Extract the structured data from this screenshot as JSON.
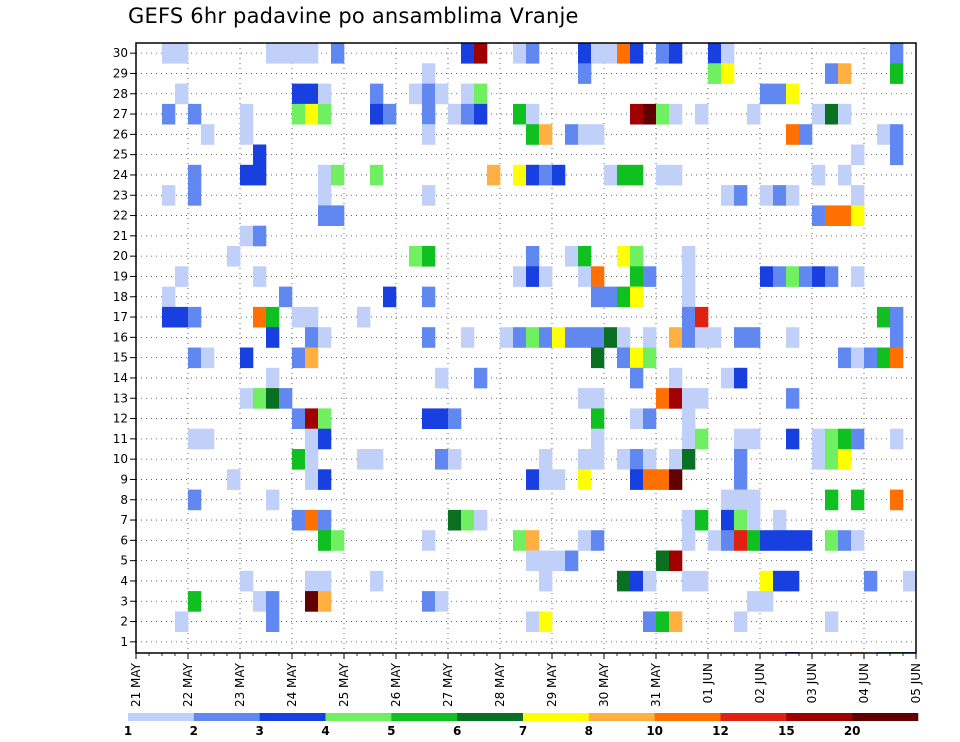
{
  "title": "GEFS 6hr padavine po ansamblima Vranje",
  "chart_data": {
    "type": "heatmap",
    "title": "GEFS 6hr padavine po ansamblima Vranje",
    "y_ticks": [
      "1",
      "2",
      "3",
      "4",
      "5",
      "6",
      "7",
      "8",
      "9",
      "10",
      "11",
      "12",
      "13",
      "14",
      "15",
      "16",
      "17",
      "18",
      "19",
      "20",
      "21",
      "22",
      "23",
      "24",
      "25",
      "26",
      "27",
      "28",
      "29",
      "30"
    ],
    "x_tick_labels": [
      "21 MAY",
      "22 MAY",
      "23 MAY",
      "24 MAY",
      "25 MAY",
      "26 MAY",
      "27 MAY",
      "28 MAY",
      "29 MAY",
      "30 MAY",
      "31 MAY",
      "01 JUN",
      "02 JUN",
      "03 JUN",
      "04 JUN",
      "05 JUN"
    ],
    "x_steps": 60,
    "grid": true,
    "colorbar": {
      "colors": [
        "#c0d0f8",
        "#6088f0",
        "#1840e0",
        "#70f060",
        "#10c020",
        "#087020",
        "#ffff00",
        "#ffb040",
        "#ff7000",
        "#e02010",
        "#a00000",
        "#600000"
      ],
      "labels": [
        "1",
        "2",
        "3",
        "4",
        "5",
        "6",
        "7",
        "8",
        "10",
        "12",
        "15",
        "20"
      ]
    },
    "cells": [
      [
        30,
        3,
        1
      ],
      [
        30,
        4,
        1
      ],
      [
        30,
        11,
        1
      ],
      [
        30,
        12,
        1
      ],
      [
        30,
        13,
        1
      ],
      [
        30,
        14,
        1
      ],
      [
        30,
        16,
        2
      ],
      [
        30,
        26,
        3
      ],
      [
        30,
        27,
        11
      ],
      [
        30,
        30,
        1
      ],
      [
        30,
        31,
        2
      ],
      [
        30,
        35,
        3
      ],
      [
        30,
        36,
        1
      ],
      [
        30,
        37,
        1
      ],
      [
        30,
        38,
        9
      ],
      [
        30,
        39,
        3
      ],
      [
        30,
        41,
        2
      ],
      [
        30,
        42,
        3
      ],
      [
        30,
        45,
        3
      ],
      [
        30,
        46,
        1
      ],
      [
        30,
        59,
        2
      ],
      [
        29,
        23,
        1
      ],
      [
        29,
        35,
        2
      ],
      [
        29,
        45,
        4
      ],
      [
        29,
        46,
        7
      ],
      [
        29,
        54,
        2
      ],
      [
        29,
        55,
        8
      ],
      [
        29,
        59,
        5
      ],
      [
        28,
        4,
        1
      ],
      [
        28,
        13,
        3
      ],
      [
        28,
        14,
        3
      ],
      [
        28,
        15,
        1
      ],
      [
        28,
        19,
        2
      ],
      [
        28,
        22,
        1
      ],
      [
        28,
        23,
        2
      ],
      [
        28,
        24,
        1
      ],
      [
        28,
        26,
        1
      ],
      [
        28,
        27,
        4
      ],
      [
        28,
        49,
        2
      ],
      [
        28,
        50,
        2
      ],
      [
        28,
        51,
        7
      ],
      [
        27,
        3,
        2
      ],
      [
        27,
        5,
        2
      ],
      [
        27,
        9,
        1
      ],
      [
        27,
        13,
        4
      ],
      [
        27,
        14,
        7
      ],
      [
        27,
        15,
        4
      ],
      [
        27,
        19,
        3
      ],
      [
        27,
        20,
        2
      ],
      [
        27,
        23,
        2
      ],
      [
        27,
        25,
        1
      ],
      [
        27,
        26,
        2
      ],
      [
        27,
        27,
        3
      ],
      [
        27,
        30,
        5
      ],
      [
        27,
        31,
        1
      ],
      [
        27,
        39,
        11
      ],
      [
        27,
        40,
        12
      ],
      [
        27,
        41,
        4
      ],
      [
        27,
        42,
        1
      ],
      [
        27,
        44,
        1
      ],
      [
        27,
        48,
        1
      ],
      [
        27,
        53,
        1
      ],
      [
        27,
        54,
        6
      ],
      [
        27,
        55,
        1
      ],
      [
        26,
        6,
        1
      ],
      [
        26,
        9,
        1
      ],
      [
        26,
        23,
        1
      ],
      [
        26,
        31,
        5
      ],
      [
        26,
        32,
        8
      ],
      [
        26,
        34,
        2
      ],
      [
        26,
        35,
        1
      ],
      [
        26,
        36,
        1
      ],
      [
        26,
        51,
        9
      ],
      [
        26,
        52,
        2
      ],
      [
        26,
        58,
        1
      ],
      [
        26,
        59,
        2
      ],
      [
        25,
        10,
        3
      ],
      [
        25,
        56,
        1
      ],
      [
        25,
        59,
        2
      ],
      [
        24,
        5,
        2
      ],
      [
        24,
        9,
        3
      ],
      [
        24,
        10,
        3
      ],
      [
        24,
        15,
        1
      ],
      [
        24,
        16,
        4
      ],
      [
        24,
        19,
        4
      ],
      [
        24,
        28,
        8
      ],
      [
        24,
        30,
        7
      ],
      [
        24,
        31,
        3
      ],
      [
        24,
        32,
        2
      ],
      [
        24,
        33,
        3
      ],
      [
        24,
        37,
        1
      ],
      [
        24,
        38,
        5
      ],
      [
        24,
        39,
        5
      ],
      [
        24,
        41,
        1
      ],
      [
        24,
        42,
        1
      ],
      [
        24,
        53,
        1
      ],
      [
        24,
        55,
        1
      ],
      [
        23,
        3,
        1
      ],
      [
        23,
        5,
        2
      ],
      [
        23,
        15,
        1
      ],
      [
        23,
        23,
        1
      ],
      [
        23,
        46,
        1
      ],
      [
        23,
        47,
        2
      ],
      [
        23,
        49,
        1
      ],
      [
        23,
        50,
        2
      ],
      [
        23,
        51,
        1
      ],
      [
        23,
        56,
        1
      ],
      [
        22,
        15,
        2
      ],
      [
        22,
        16,
        2
      ],
      [
        22,
        53,
        2
      ],
      [
        22,
        54,
        9
      ],
      [
        22,
        55,
        9
      ],
      [
        22,
        56,
        7
      ],
      [
        21,
        9,
        1
      ],
      [
        21,
        10,
        2
      ],
      [
        20,
        8,
        1
      ],
      [
        20,
        22,
        4
      ],
      [
        20,
        23,
        5
      ],
      [
        20,
        31,
        2
      ],
      [
        20,
        34,
        1
      ],
      [
        20,
        35,
        5
      ],
      [
        20,
        38,
        7
      ],
      [
        20,
        39,
        4
      ],
      [
        20,
        43,
        1
      ],
      [
        19,
        4,
        1
      ],
      [
        19,
        10,
        1
      ],
      [
        19,
        30,
        1
      ],
      [
        19,
        31,
        3
      ],
      [
        19,
        32,
        1
      ],
      [
        19,
        35,
        1
      ],
      [
        19,
        36,
        9
      ],
      [
        19,
        39,
        5
      ],
      [
        19,
        40,
        2
      ],
      [
        19,
        43,
        1
      ],
      [
        19,
        49,
        3
      ],
      [
        19,
        50,
        2
      ],
      [
        19,
        51,
        4
      ],
      [
        19,
        52,
        2
      ],
      [
        19,
        53,
        3
      ],
      [
        19,
        54,
        2
      ],
      [
        19,
        56,
        1
      ],
      [
        18,
        3,
        1
      ],
      [
        18,
        12,
        2
      ],
      [
        18,
        20,
        3
      ],
      [
        18,
        23,
        2
      ],
      [
        18,
        36,
        2
      ],
      [
        18,
        37,
        2
      ],
      [
        18,
        38,
        5
      ],
      [
        18,
        39,
        7
      ],
      [
        18,
        43,
        1
      ],
      [
        17,
        3,
        3
      ],
      [
        17,
        4,
        3
      ],
      [
        17,
        5,
        2
      ],
      [
        17,
        10,
        9
      ],
      [
        17,
        11,
        5
      ],
      [
        17,
        13,
        1
      ],
      [
        17,
        14,
        1
      ],
      [
        17,
        18,
        1
      ],
      [
        17,
        43,
        2
      ],
      [
        17,
        44,
        10
      ],
      [
        17,
        58,
        5
      ],
      [
        17,
        59,
        2
      ],
      [
        16,
        11,
        3
      ],
      [
        16,
        14,
        2
      ],
      [
        16,
        15,
        1
      ],
      [
        16,
        23,
        2
      ],
      [
        16,
        26,
        1
      ],
      [
        16,
        29,
        1
      ],
      [
        16,
        30,
        2
      ],
      [
        16,
        31,
        4
      ],
      [
        16,
        32,
        2
      ],
      [
        16,
        33,
        7
      ],
      [
        16,
        34,
        2
      ],
      [
        16,
        35,
        2
      ],
      [
        16,
        36,
        2
      ],
      [
        16,
        37,
        6
      ],
      [
        16,
        38,
        1
      ],
      [
        16,
        40,
        1
      ],
      [
        16,
        42,
        8
      ],
      [
        16,
        43,
        2
      ],
      [
        16,
        44,
        1
      ],
      [
        16,
        45,
        1
      ],
      [
        16,
        47,
        2
      ],
      [
        16,
        48,
        2
      ],
      [
        16,
        51,
        1
      ],
      [
        16,
        59,
        2
      ],
      [
        15,
        5,
        2
      ],
      [
        15,
        6,
        1
      ],
      [
        15,
        9,
        3
      ],
      [
        15,
        13,
        2
      ],
      [
        15,
        14,
        8
      ],
      [
        15,
        36,
        6
      ],
      [
        15,
        38,
        2
      ],
      [
        15,
        39,
        7
      ],
      [
        15,
        40,
        4
      ],
      [
        15,
        55,
        2
      ],
      [
        15,
        56,
        1
      ],
      [
        15,
        57,
        2
      ],
      [
        15,
        58,
        5
      ],
      [
        15,
        59,
        9
      ],
      [
        14,
        11,
        1
      ],
      [
        14,
        24,
        1
      ],
      [
        14,
        27,
        2
      ],
      [
        14,
        39,
        2
      ],
      [
        14,
        42,
        1
      ],
      [
        14,
        46,
        1
      ],
      [
        14,
        47,
        3
      ],
      [
        13,
        9,
        1
      ],
      [
        13,
        10,
        4
      ],
      [
        13,
        11,
        6
      ],
      [
        13,
        12,
        2
      ],
      [
        13,
        35,
        1
      ],
      [
        13,
        36,
        1
      ],
      [
        13,
        41,
        9
      ],
      [
        13,
        42,
        11
      ],
      [
        13,
        43,
        1
      ],
      [
        13,
        44,
        1
      ],
      [
        13,
        51,
        2
      ],
      [
        12,
        13,
        2
      ],
      [
        12,
        14,
        11
      ],
      [
        12,
        15,
        4
      ],
      [
        12,
        23,
        3
      ],
      [
        12,
        24,
        3
      ],
      [
        12,
        25,
        2
      ],
      [
        12,
        36,
        5
      ],
      [
        12,
        39,
        1
      ],
      [
        12,
        40,
        2
      ],
      [
        12,
        43,
        1
      ],
      [
        11,
        5,
        1
      ],
      [
        11,
        6,
        1
      ],
      [
        11,
        14,
        1
      ],
      [
        11,
        15,
        3
      ],
      [
        11,
        36,
        1
      ],
      [
        11,
        43,
        1
      ],
      [
        11,
        44,
        4
      ],
      [
        11,
        47,
        1
      ],
      [
        11,
        48,
        1
      ],
      [
        11,
        51,
        3
      ],
      [
        11,
        53,
        1
      ],
      [
        11,
        54,
        4
      ],
      [
        11,
        55,
        5
      ],
      [
        11,
        56,
        2
      ],
      [
        11,
        59,
        1
      ],
      [
        10,
        13,
        5
      ],
      [
        10,
        14,
        1
      ],
      [
        10,
        18,
        1
      ],
      [
        10,
        19,
        1
      ],
      [
        10,
        24,
        2
      ],
      [
        10,
        25,
        1
      ],
      [
        10,
        32,
        1
      ],
      [
        10,
        35,
        1
      ],
      [
        10,
        36,
        1
      ],
      [
        10,
        38,
        1
      ],
      [
        10,
        39,
        2
      ],
      [
        10,
        40,
        1
      ],
      [
        10,
        42,
        1
      ],
      [
        10,
        43,
        6
      ],
      [
        10,
        47,
        2
      ],
      [
        10,
        53,
        1
      ],
      [
        10,
        54,
        4
      ],
      [
        10,
        55,
        7
      ],
      [
        9,
        8,
        1
      ],
      [
        9,
        14,
        1
      ],
      [
        9,
        15,
        3
      ],
      [
        9,
        31,
        3
      ],
      [
        9,
        32,
        1
      ],
      [
        9,
        33,
        1
      ],
      [
        9,
        35,
        7
      ],
      [
        9,
        39,
        3
      ],
      [
        9,
        40,
        9
      ],
      [
        9,
        41,
        9
      ],
      [
        9,
        42,
        12
      ],
      [
        9,
        47,
        2
      ],
      [
        8,
        5,
        2
      ],
      [
        8,
        11,
        1
      ],
      [
        8,
        46,
        1
      ],
      [
        8,
        47,
        1
      ],
      [
        8,
        48,
        1
      ],
      [
        8,
        54,
        5
      ],
      [
        8,
        56,
        5
      ],
      [
        8,
        59,
        9
      ],
      [
        7,
        13,
        2
      ],
      [
        7,
        14,
        9
      ],
      [
        7,
        15,
        2
      ],
      [
        7,
        25,
        6
      ],
      [
        7,
        26,
        4
      ],
      [
        7,
        27,
        1
      ],
      [
        7,
        43,
        1
      ],
      [
        7,
        44,
        5
      ],
      [
        7,
        46,
        3
      ],
      [
        7,
        47,
        4
      ],
      [
        7,
        48,
        1
      ],
      [
        7,
        50,
        1
      ],
      [
        6,
        15,
        5
      ],
      [
        6,
        16,
        4
      ],
      [
        6,
        23,
        1
      ],
      [
        6,
        30,
        4
      ],
      [
        6,
        31,
        8
      ],
      [
        6,
        35,
        1
      ],
      [
        6,
        36,
        2
      ],
      [
        6,
        43,
        1
      ],
      [
        6,
        45,
        1
      ],
      [
        6,
        46,
        2
      ],
      [
        6,
        47,
        10
      ],
      [
        6,
        48,
        5
      ],
      [
        6,
        49,
        3
      ],
      [
        6,
        50,
        3
      ],
      [
        6,
        51,
        3
      ],
      [
        6,
        52,
        3
      ],
      [
        6,
        54,
        4
      ],
      [
        6,
        55,
        2
      ],
      [
        6,
        56,
        1
      ],
      [
        5,
        31,
        1
      ],
      [
        5,
        32,
        1
      ],
      [
        5,
        33,
        1
      ],
      [
        5,
        34,
        2
      ],
      [
        5,
        41,
        6
      ],
      [
        5,
        42,
        11
      ],
      [
        4,
        9,
        1
      ],
      [
        4,
        14,
        1
      ],
      [
        4,
        15,
        1
      ],
      [
        4,
        19,
        1
      ],
      [
        4,
        32,
        1
      ],
      [
        4,
        38,
        6
      ],
      [
        4,
        39,
        3
      ],
      [
        4,
        40,
        1
      ],
      [
        4,
        43,
        1
      ],
      [
        4,
        44,
        1
      ],
      [
        4,
        49,
        7
      ],
      [
        4,
        50,
        3
      ],
      [
        4,
        51,
        3
      ],
      [
        4,
        57,
        2
      ],
      [
        4,
        60,
        1
      ],
      [
        3,
        5,
        5
      ],
      [
        3,
        10,
        1
      ],
      [
        3,
        11,
        2
      ],
      [
        3,
        14,
        12
      ],
      [
        3,
        15,
        8
      ],
      [
        3,
        23,
        2
      ],
      [
        3,
        24,
        1
      ],
      [
        3,
        48,
        1
      ],
      [
        3,
        49,
        1
      ],
      [
        2,
        4,
        1
      ],
      [
        2,
        11,
        2
      ],
      [
        2,
        31,
        1
      ],
      [
        2,
        32,
        7
      ],
      [
        2,
        40,
        2
      ],
      [
        2,
        41,
        5
      ],
      [
        2,
        42,
        8
      ],
      [
        2,
        47,
        1
      ],
      [
        2,
        54,
        1
      ]
    ],
    "bottom_row": [
      [
        11,
        2
      ],
      [
        13,
        1
      ],
      [
        51,
        3
      ],
      [
        56,
        8
      ],
      [
        58,
        2
      ],
      [
        59,
        5
      ],
      [
        60,
        3
      ]
    ]
  }
}
